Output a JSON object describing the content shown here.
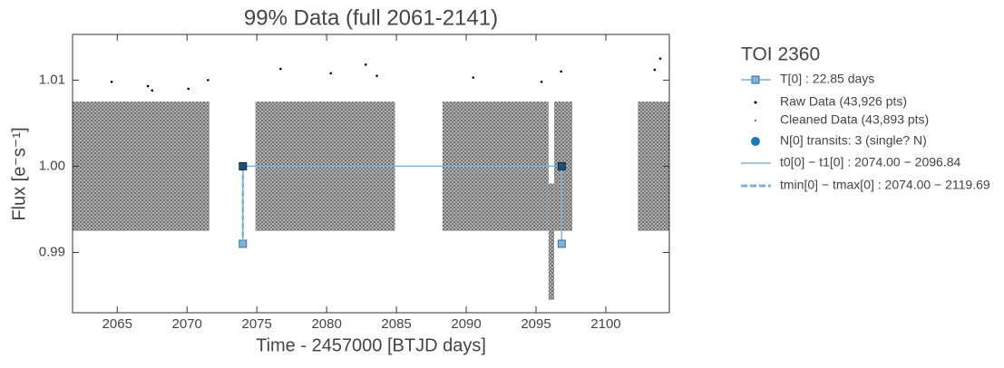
{
  "chart_data": {
    "type": "scatter",
    "title": "99% Data (full 2061-2141)",
    "xlabel": "Time - 2457000 [BTJD days]",
    "ylabel": "Flux [e⁻s⁻¹]",
    "xlim": [
      2061.8,
      2104.55
    ],
    "ylim": [
      0.983,
      1.0153
    ],
    "xticks": [
      2065,
      2070,
      2075,
      2080,
      2085,
      2090,
      2095,
      2100
    ],
    "yticks": [
      0.99,
      {
        "value": 1.0,
        "label": "1.00"
      },
      1.01
    ],
    "legend_title": "TOI 2360",
    "period": {
      "name": "T[0] : 22.85 days",
      "color": "#7fb2da",
      "x": [
        2074.0,
        2096.84
      ],
      "y": [
        0.991,
        0.991
      ]
    },
    "raw": {
      "name": "Raw Data (43,926 pts)",
      "color": "#000000",
      "x": [
        2064.6,
        2067.2,
        2067.5,
        2070.1,
        2071.5,
        2076.7,
        2080.3,
        2082.8,
        2083.6,
        2090.5,
        2095.4,
        2096.8,
        2103.5,
        2103.9
      ],
      "y": [
        1.0098,
        1.0093,
        1.0088,
        1.009,
        1.01,
        1.0113,
        1.0108,
        1.0118,
        1.0105,
        1.0103,
        1.0098,
        1.011,
        1.0112,
        1.0125
      ]
    },
    "cleaned": {
      "name": "Cleaned Data (43,893 pts)",
      "color": "#777777",
      "x0": [
        2061.8,
        2074.9,
        2088.3,
        2096.3,
        2095.9,
        2102.3
      ],
      "x1": [
        2071.6,
        2084.9,
        2095.9,
        2097.6,
        2096.3,
        2104.55
      ],
      "y0": [
        0.9925,
        0.9925,
        0.9925,
        0.9925,
        0.9845,
        0.9925
      ],
      "y1": [
        1.0075,
        1.0075,
        1.0075,
        1.0075,
        0.998,
        1.0075
      ]
    },
    "transits": {
      "name": "N[0] transits: 3 (single? N)",
      "color": "#1f77b4",
      "x": [
        2074.0,
        2096.84
      ],
      "y": [
        1.0,
        1.0
      ]
    },
    "span": {
      "name": "t0[0] − t1[0] : 2074.00 − 2096.84",
      "color": "#7fb2da",
      "x": [
        2074.0,
        2096.84
      ]
    },
    "window": {
      "name": "tmin[0] − tmax[0] : 2074.00 − 2119.69",
      "color": "#7fb2da",
      "x": [
        2074.0,
        2119.69
      ]
    }
  }
}
